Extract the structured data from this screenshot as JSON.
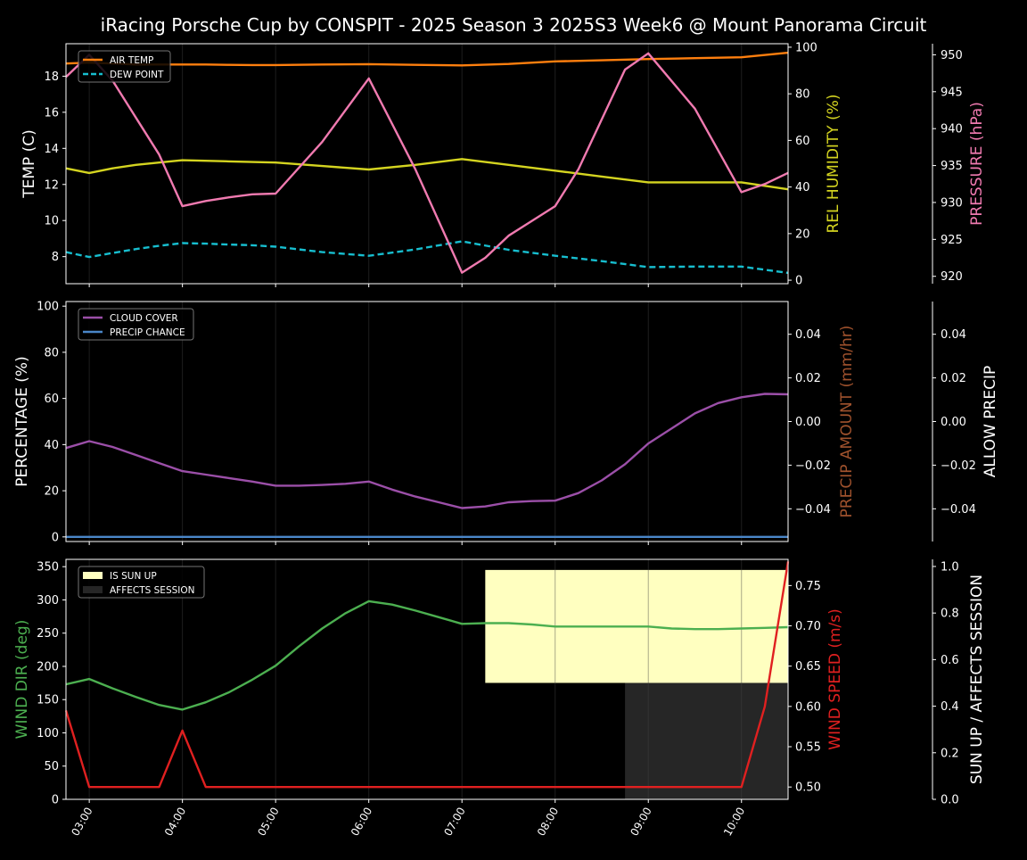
{
  "title": "iRacing Porsche Cup by CONSPIT - 2025 Season 3 2025S3 Week6 @ Mount Panorama Circuit",
  "colors": {
    "air_temp": "#ff7f0e",
    "dew_point": "#17becf",
    "humidity": "#d4d420",
    "pressure": "#f07ab0",
    "cloud": "#9b4fa8",
    "precip_chance": "#4a86c8",
    "wind_dir": "#4caf50",
    "wind_speed": "#e02020",
    "sun_up": "#ffffc0",
    "affects": "#262626",
    "precip_amount_label": "#a0522d"
  },
  "chart_data": [
    {
      "type": "line",
      "panel": "temperature",
      "x_ticks": [
        "03:00",
        "04:00",
        "05:00",
        "06:00",
        "07:00",
        "08:00",
        "09:00",
        "10:00"
      ],
      "x_range": [
        2.75,
        10.5
      ],
      "ylabel": "TEMP (C)",
      "ylim": [
        6.5,
        19.8
      ],
      "yticks": [
        "8",
        "10",
        "12",
        "14",
        "16",
        "18"
      ],
      "y2label": "REL HUMIDITY (%)",
      "y2lim": [
        -1.5,
        101.5
      ],
      "y2ticks": [
        "0",
        "20",
        "40",
        "60",
        "80",
        "100"
      ],
      "y3label": "PRESSURE (hPa)",
      "y3lim": [
        919,
        951.5
      ],
      "y3ticks": [
        "920",
        "925",
        "930",
        "935",
        "940",
        "945",
        "950"
      ],
      "legend": "top-left",
      "legend_entries": [
        "AIR TEMP",
        "DEW POINT"
      ],
      "series": [
        {
          "name": "AIR TEMP",
          "axis": "left",
          "x": [
            2.75,
            3,
            3.25,
            3.5,
            3.75,
            4,
            4.25,
            4.5,
            4.75,
            5,
            5.5,
            6,
            6.5,
            7,
            7.5,
            8,
            8.5,
            9,
            9.5,
            10,
            10.5
          ],
          "y": [
            18.7,
            18.75,
            18.7,
            18.65,
            18.65,
            18.65,
            18.65,
            18.63,
            18.62,
            18.62,
            18.65,
            18.67,
            18.63,
            18.6,
            18.68,
            18.82,
            18.88,
            18.95,
            19.0,
            19.05,
            19.3
          ]
        },
        {
          "name": "DEW POINT",
          "axis": "left",
          "x": [
            2.75,
            3,
            3.25,
            3.5,
            3.75,
            4,
            4.25,
            4.5,
            4.75,
            5,
            5.5,
            6,
            6.5,
            7,
            7.5,
            8,
            8.5,
            9,
            9.5,
            10,
            10.5
          ],
          "y": [
            8.25,
            7.98,
            8.2,
            8.42,
            8.6,
            8.75,
            8.72,
            8.67,
            8.63,
            8.55,
            8.25,
            8.05,
            8.4,
            8.85,
            8.38,
            8.05,
            7.75,
            7.42,
            7.45,
            7.45,
            7.1
          ]
        },
        {
          "name": "REL HUMIDITY",
          "axis": "right",
          "x": [
            2.75,
            3,
            3.25,
            3.5,
            3.75,
            4,
            4.5,
            5,
            5.5,
            6,
            6.5,
            7,
            7.5,
            8,
            8.5,
            9,
            9.5,
            10,
            10.5
          ],
          "y": [
            48,
            46,
            48,
            49.5,
            50.5,
            51.5,
            51,
            50.5,
            49,
            47.5,
            49.5,
            52,
            49.5,
            47,
            44.5,
            42,
            42,
            42,
            39
          ]
        },
        {
          "name": "PRESSURE",
          "axis": "right2",
          "x": [
            2.75,
            3,
            3.25,
            3.5,
            3.75,
            4,
            4.25,
            4.5,
            4.75,
            5,
            5.5,
            6,
            6.5,
            7,
            7.25,
            7.5,
            8,
            8.25,
            8.75,
            9,
            9.5,
            10,
            10.25,
            10.5
          ],
          "y": [
            947,
            950.0,
            946.5,
            941.5,
            936.5,
            929.5,
            930.2,
            930.7,
            931.1,
            931.2,
            938.2,
            946.8,
            934.5,
            920.5,
            922.5,
            925.5,
            929.5,
            934.5,
            948.0,
            950.2,
            942.7,
            931.4,
            932.5,
            934.0
          ]
        }
      ]
    },
    {
      "type": "line",
      "panel": "precipitation",
      "x_ticks": [
        "03:00",
        "04:00",
        "05:00",
        "06:00",
        "07:00",
        "08:00",
        "09:00",
        "10:00"
      ],
      "x_range": [
        2.75,
        10.5
      ],
      "ylabel": "PERCENTAGE (%)",
      "ylim": [
        -2,
        102
      ],
      "yticks": [
        "0",
        "20",
        "40",
        "60",
        "80",
        "100"
      ],
      "y2label": "PRECIP AMOUNT (mm/hr)",
      "y2lim": [
        -0.055,
        0.055
      ],
      "y2ticks": [
        "−0.04",
        "−0.02",
        "0.00",
        "0.02",
        "0.04"
      ],
      "y3label": "ALLOW PRECIP",
      "y3lim": [
        -0.055,
        0.055
      ],
      "y3ticks": [
        "−0.04",
        "−0.02",
        "0.00",
        "0.02",
        "0.04"
      ],
      "legend": "top-left",
      "legend_entries": [
        "CLOUD COVER",
        "PRECIP CHANCE"
      ],
      "series": [
        {
          "name": "CLOUD COVER",
          "axis": "left",
          "x": [
            2.75,
            3,
            3.25,
            3.5,
            3.75,
            4,
            4.25,
            4.5,
            4.75,
            5,
            5.25,
            5.5,
            5.75,
            6,
            6.25,
            6.5,
            6.75,
            7,
            7.25,
            7.5,
            7.75,
            8,
            8.25,
            8.5,
            8.75,
            9,
            9.25,
            9.5,
            9.75,
            10,
            10.25,
            10.5
          ],
          "y": [
            38.5,
            41.5,
            39,
            35.5,
            32,
            28.5,
            27,
            25.5,
            24,
            22.2,
            22.2,
            22.5,
            23,
            24,
            20.5,
            17.5,
            15,
            12.5,
            13.2,
            15,
            15.5,
            15.7,
            19,
            24.5,
            31.5,
            40.5,
            47,
            53.5,
            58,
            60.5,
            62,
            61.8
          ]
        },
        {
          "name": "PRECIP CHANCE",
          "axis": "left",
          "x": [
            2.75,
            10.5
          ],
          "y": [
            0,
            0
          ]
        }
      ]
    },
    {
      "type": "line",
      "panel": "wind",
      "x_ticks": [
        "03:00",
        "04:00",
        "05:00",
        "06:00",
        "07:00",
        "08:00",
        "09:00",
        "10:00"
      ],
      "x_range": [
        2.75,
        10.5
      ],
      "ylabel": "WIND DIR (deg)",
      "ylim": [
        0,
        361
      ],
      "yticks": [
        "0",
        "50",
        "100",
        "150",
        "200",
        "250",
        "300",
        "350"
      ],
      "y2label": "WIND SPEED (m/s)",
      "y2lim": [
        0.4847,
        0.7825
      ],
      "y2ticks": [
        "0.50",
        "0.55",
        "0.60",
        "0.65",
        "0.70",
        "0.75"
      ],
      "y3label": "SUN UP / AFFECTS SESSION",
      "y3lim": [
        0,
        1.0305
      ],
      "y3ticks": [
        "0.0",
        "0.2",
        "0.4",
        "0.6",
        "0.8",
        "1.0"
      ],
      "legend": "top-left",
      "legend_entries": [
        "IS SUN UP",
        "AFFECTS SESSION"
      ],
      "sun_up": {
        "x0": 7.25,
        "x1": 10.5,
        "y0": 0.5,
        "y1": 0.985
      },
      "affects_session": {
        "x0": 8.75,
        "x1": 10.5,
        "y0": 0,
        "y1": 0.5
      },
      "series": [
        {
          "name": "WIND DIR",
          "axis": "left",
          "x": [
            2.75,
            3,
            3.25,
            3.5,
            3.75,
            4,
            4.25,
            4.5,
            4.75,
            5,
            5.25,
            5.5,
            5.75,
            6,
            6.25,
            6.5,
            6.75,
            7,
            7.25,
            7.5,
            7.75,
            8,
            8.25,
            8.5,
            8.75,
            9,
            9.25,
            9.5,
            9.75,
            10,
            10.25,
            10.5
          ],
          "y": [
            173,
            181,
            167,
            154,
            142,
            135,
            146,
            161,
            180,
            201,
            230,
            257,
            280,
            298,
            293,
            284,
            274,
            264,
            265,
            265,
            263,
            260,
            260,
            260,
            260,
            260,
            257,
            256,
            256,
            257,
            258,
            259
          ]
        },
        {
          "name": "WIND SPEED",
          "axis": "right",
          "x": [
            2.75,
            3,
            3.25,
            3.5,
            3.75,
            4,
            4.25,
            4.5,
            5,
            6,
            7,
            8,
            9,
            9.5,
            10,
            10.25,
            10.5
          ],
          "y": [
            0.595,
            0.5,
            0.5,
            0.5,
            0.5,
            0.57,
            0.5,
            0.5,
            0.5,
            0.5,
            0.5,
            0.5,
            0.5,
            0.5,
            0.5,
            0.6,
            0.78
          ]
        }
      ]
    }
  ]
}
